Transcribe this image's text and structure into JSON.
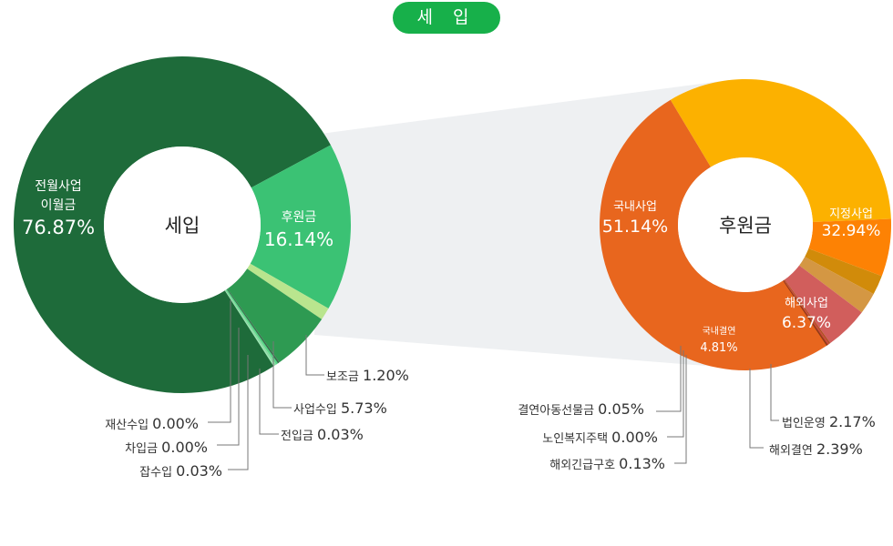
{
  "header": {
    "title": "세 입"
  },
  "colors": {
    "pill": "#17b04a",
    "connector": "#eef0f2",
    "leader": "#777777"
  },
  "chart_data": [
    {
      "type": "pie",
      "variant": "donut",
      "center_label": "세입",
      "slices": [
        {
          "label": "전월사업 이월금",
          "label_lines": [
            "전월사업",
            "이월금"
          ],
          "value": 76.87,
          "value_text": "76.87%",
          "color": "#1e6b3a",
          "label_position": "inside"
        },
        {
          "label": "후원금",
          "value": 16.14,
          "value_text": "16.14%",
          "color": "#3bc274",
          "label_position": "inside"
        },
        {
          "label": "보조금",
          "value": 1.2,
          "value_text": "1.20%",
          "color": "#b9e58e",
          "label_position": "outside"
        },
        {
          "label": "사업수입",
          "value": 5.73,
          "value_text": "5.73%",
          "color": "#2e9a52",
          "label_position": "outside"
        },
        {
          "label": "전입금",
          "value": 0.03,
          "value_text": "0.03%",
          "color": "#3d7050",
          "label_position": "outside"
        },
        {
          "label": "잡수입",
          "value": 0.03,
          "value_text": "0.03%",
          "color": "#59d98a",
          "label_position": "outside"
        },
        {
          "label": "차입금",
          "value": 0.0,
          "value_text": "0.00%",
          "color": "#88e0a4",
          "label_position": "outside"
        },
        {
          "label": "재산수입",
          "value": 0.0,
          "value_text": "0.00%",
          "color": "#9fe6b5",
          "label_position": "outside"
        }
      ]
    },
    {
      "type": "pie",
      "variant": "donut",
      "center_label": "후원금",
      "slices": [
        {
          "label": "국내사업",
          "value": 51.14,
          "value_text": "51.14%",
          "color": "#e8661e",
          "label_position": "inside"
        },
        {
          "label": "지정사업",
          "value": 32.94,
          "value_text": "32.94%",
          "color": "#fcb100",
          "label_position": "inside"
        },
        {
          "label": "해외사업",
          "value": 6.37,
          "value_text": "6.37%",
          "color": "#fd8204",
          "label_position": "inside"
        },
        {
          "label": "법인운영",
          "value": 2.17,
          "value_text": "2.17%",
          "color": "#d18b0a",
          "label_position": "outside"
        },
        {
          "label": "해외결연",
          "value": 2.39,
          "value_text": "2.39%",
          "color": "#d49743",
          "label_position": "outside"
        },
        {
          "label": "국내결연",
          "value": 4.81,
          "value_text": "4.81%",
          "color": "#d15e5c",
          "label_position": "inside"
        },
        {
          "label": "해외긴급구호",
          "value": 0.13,
          "value_text": "0.13%",
          "color": "#b04e20",
          "label_position": "outside"
        },
        {
          "label": "노인복지주택",
          "value": 0.0,
          "value_text": "0.00%",
          "color": "#c8473a",
          "label_position": "outside"
        },
        {
          "label": "결연아동선물금",
          "value": 0.05,
          "value_text": "0.05%",
          "color": "#8c3a18",
          "label_position": "outside"
        }
      ]
    }
  ]
}
